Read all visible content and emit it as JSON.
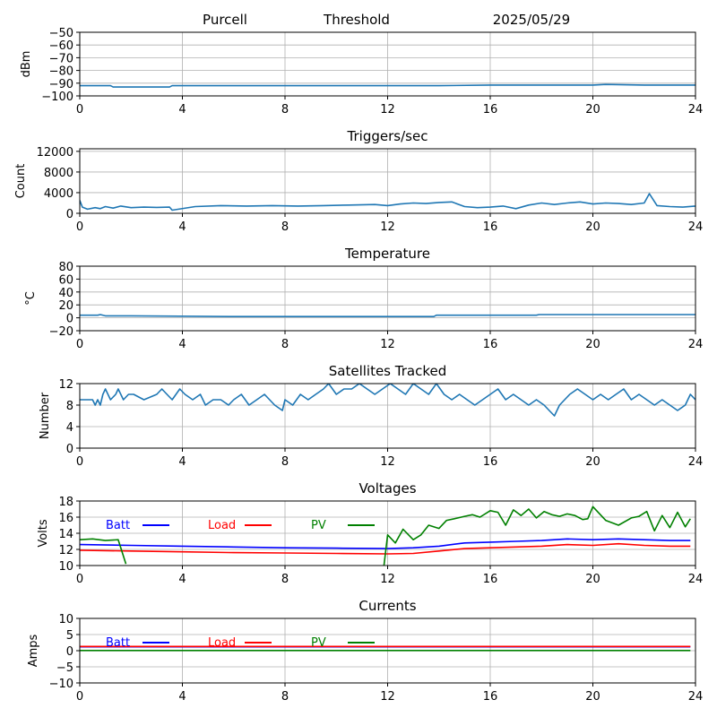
{
  "header": {
    "station": "Purcell",
    "label": "Threshold",
    "date": "2025/05/29"
  },
  "chart_data": [
    {
      "type": "line",
      "title": "",
      "xlabel": "",
      "ylabel": "dBm",
      "xlim": [
        0,
        24
      ],
      "ylim": [
        -100,
        -50
      ],
      "x_ticks": [
        0,
        4,
        8,
        12,
        16,
        20,
        24
      ],
      "y_ticks": [
        -100,
        -90,
        -80,
        -70,
        -60,
        -50
      ],
      "grid": true,
      "series": [
        {
          "color": "#1f77b4",
          "x": [
            0,
            1.2,
            1.3,
            3.5,
            3.6,
            12,
            14,
            16,
            18,
            20,
            20.5,
            22,
            24
          ],
          "y": [
            -92,
            -92,
            -93,
            -93,
            -92,
            -92,
            -92,
            -91.5,
            -91.5,
            -91.5,
            -91,
            -91.5,
            -91.5
          ]
        }
      ]
    },
    {
      "type": "line",
      "title": "Triggers/sec",
      "xlabel": "",
      "ylabel": "Count",
      "xlim": [
        0,
        24
      ],
      "ylim": [
        0,
        12500
      ],
      "x_ticks": [
        0,
        4,
        8,
        12,
        16,
        20,
        24
      ],
      "y_ticks": [
        0,
        4000,
        8000,
        12000
      ],
      "grid": true,
      "series": [
        {
          "color": "#1f77b4",
          "x": [
            0,
            0.1,
            0.3,
            0.6,
            0.8,
            1.0,
            1.3,
            1.6,
            2.0,
            2.5,
            3.0,
            3.5,
            3.6,
            4.5,
            5.5,
            6.5,
            7.5,
            8.5,
            9.5,
            10.5,
            11.5,
            12.0,
            12.5,
            13.0,
            13.5,
            14.0,
            14.5,
            15.0,
            15.5,
            16.0,
            16.5,
            17.0,
            17.5,
            18.0,
            18.5,
            19.0,
            19.5,
            20.0,
            20.5,
            21.0,
            21.5,
            22.0,
            22.2,
            22.5,
            23.0,
            23.5,
            24.0
          ],
          "y": [
            2500,
            1200,
            800,
            1100,
            900,
            1300,
            1000,
            1400,
            1100,
            1200,
            1150,
            1200,
            600,
            1300,
            1500,
            1400,
            1500,
            1400,
            1500,
            1600,
            1700,
            1500,
            1800,
            2000,
            1900,
            2100,
            2200,
            1300,
            1100,
            1200,
            1400,
            900,
            1600,
            2000,
            1700,
            2000,
            2200,
            1800,
            2000,
            1900,
            1700,
            2000,
            3800,
            1500,
            1300,
            1200,
            1400
          ]
        }
      ]
    },
    {
      "type": "line",
      "title": "Temperature",
      "xlabel": "",
      "ylabel": "°C",
      "xlim": [
        0,
        24
      ],
      "ylim": [
        -20,
        80
      ],
      "x_ticks": [
        0,
        4,
        8,
        12,
        16,
        20,
        24
      ],
      "y_ticks": [
        -20,
        0,
        20,
        40,
        60,
        80
      ],
      "grid": true,
      "series": [
        {
          "color": "#1f77b4",
          "x": [
            0,
            0.7,
            0.8,
            1.0,
            2.0,
            6.0,
            10.0,
            13.8,
            13.9,
            17.8,
            17.9,
            24
          ],
          "y": [
            4,
            4,
            5,
            3,
            3,
            2,
            2,
            2,
            4,
            4,
            5,
            5
          ]
        }
      ]
    },
    {
      "type": "line",
      "title": "Satellites Tracked",
      "xlabel": "",
      "ylabel": "Number",
      "xlim": [
        0,
        24
      ],
      "ylim": [
        0,
        12
      ],
      "x_ticks": [
        0,
        4,
        8,
        12,
        16,
        20,
        24
      ],
      "y_ticks": [
        0,
        4,
        8,
        12
      ],
      "grid": true,
      "series": [
        {
          "color": "#1f77b4",
          "x": [
            0,
            0.5,
            0.6,
            0.7,
            0.8,
            0.9,
            1.0,
            1.2,
            1.4,
            1.5,
            1.7,
            1.9,
            2.1,
            2.5,
            3.0,
            3.2,
            3.4,
            3.6,
            3.9,
            4.1,
            4.4,
            4.7,
            4.9,
            5.2,
            5.5,
            5.8,
            6.0,
            6.3,
            6.6,
            6.9,
            7.2,
            7.6,
            7.9,
            8.0,
            8.3,
            8.6,
            8.9,
            9.2,
            9.5,
            9.7,
            10.0,
            10.3,
            10.6,
            10.9,
            11.2,
            11.5,
            11.8,
            12.1,
            12.4,
            12.7,
            13.0,
            13.3,
            13.6,
            13.9,
            14.2,
            14.5,
            14.8,
            15.1,
            15.4,
            15.7,
            16.0,
            16.3,
            16.6,
            16.9,
            17.2,
            17.5,
            17.8,
            18.1,
            18.3,
            18.5,
            18.7,
            18.9,
            19.1,
            19.4,
            19.7,
            20.0,
            20.3,
            20.6,
            20.9,
            21.2,
            21.5,
            21.8,
            22.1,
            22.4,
            22.7,
            23.0,
            23.3,
            23.6,
            23.8,
            24.0
          ],
          "y": [
            9,
            9,
            8,
            9,
            8,
            10,
            11,
            9,
            10,
            11,
            9,
            10,
            10,
            9,
            10,
            11,
            10,
            9,
            11,
            10,
            9,
            10,
            8,
            9,
            9,
            8,
            9,
            10,
            8,
            9,
            10,
            8,
            7,
            9,
            8,
            10,
            9,
            10,
            11,
            12,
            10,
            11,
            11,
            12,
            11,
            10,
            11,
            12,
            11,
            10,
            12,
            11,
            10,
            12,
            10,
            9,
            10,
            9,
            8,
            9,
            10,
            11,
            9,
            10,
            9,
            8,
            9,
            8,
            7,
            6,
            8,
            9,
            10,
            11,
            10,
            9,
            10,
            9,
            10,
            11,
            9,
            10,
            9,
            8,
            9,
            8,
            7,
            8,
            10,
            9
          ]
        }
      ]
    },
    {
      "type": "line",
      "title": "Voltages",
      "xlabel": "",
      "ylabel": "Volts",
      "xlim": [
        0,
        24
      ],
      "ylim": [
        10,
        18
      ],
      "x_ticks": [
        0,
        4,
        8,
        12,
        16,
        20,
        24
      ],
      "y_ticks": [
        10,
        12,
        14,
        16,
        18
      ],
      "grid": true,
      "legend": "top",
      "series": [
        {
          "name": "Batt",
          "color": "#0000ff",
          "x": [
            0,
            2,
            4,
            6,
            8,
            10,
            12,
            13,
            14,
            15,
            16,
            17,
            18,
            19,
            20,
            21,
            22,
            23,
            23.8
          ],
          "y": [
            12.6,
            12.5,
            12.4,
            12.3,
            12.2,
            12.15,
            12.1,
            12.2,
            12.4,
            12.8,
            12.9,
            13.0,
            13.1,
            13.3,
            13.2,
            13.3,
            13.2,
            13.1,
            13.1
          ]
        },
        {
          "name": "Load",
          "color": "#ff0000",
          "x": [
            0,
            2,
            4,
            6,
            8,
            10,
            12,
            13,
            14,
            15,
            16,
            17,
            18,
            19,
            20,
            21,
            22,
            23,
            23.8
          ],
          "y": [
            11.9,
            11.8,
            11.7,
            11.6,
            11.55,
            11.5,
            11.45,
            11.5,
            11.8,
            12.1,
            12.2,
            12.3,
            12.4,
            12.6,
            12.5,
            12.7,
            12.5,
            12.4,
            12.4
          ]
        },
        {
          "name": "PV",
          "color": "#008000",
          "x": [
            0,
            0.5,
            1.0,
            1.5,
            1.8,
            1.85,
            11.8,
            11.85,
            12.0,
            12.3,
            12.6,
            13.0,
            13.3,
            13.6,
            14.0,
            14.3,
            14.6,
            15.0,
            15.3,
            15.6,
            16.0,
            16.3,
            16.6,
            16.9,
            17.2,
            17.5,
            17.8,
            18.1,
            18.4,
            18.7,
            19.0,
            19.3,
            19.6,
            19.8,
            20.0,
            20.5,
            21.0,
            21.5,
            21.8,
            22.1,
            22.4,
            22.7,
            23.0,
            23.3,
            23.6,
            23.8
          ],
          "y": [
            13.2,
            13.3,
            13.1,
            13.2,
            10.2,
            null,
            null,
            9.8,
            13.8,
            12.8,
            14.5,
            13.2,
            13.8,
            15.0,
            14.6,
            15.6,
            15.8,
            16.1,
            16.3,
            16.0,
            16.8,
            16.6,
            15.0,
            16.9,
            16.2,
            17.0,
            15.9,
            16.7,
            16.3,
            16.1,
            16.4,
            16.2,
            15.7,
            15.8,
            17.3,
            15.6,
            15.0,
            15.9,
            16.1,
            16.7,
            14.3,
            16.2,
            14.7,
            16.6,
            14.8,
            15.8
          ]
        }
      ]
    },
    {
      "type": "line",
      "title": "Currents",
      "xlabel": "",
      "ylabel": "Amps",
      "xlim": [
        0,
        24
      ],
      "ylim": [
        -10,
        10
      ],
      "x_ticks": [
        0,
        4,
        8,
        12,
        16,
        20,
        24
      ],
      "y_ticks": [
        -10,
        -5,
        0,
        5,
        10
      ],
      "grid": true,
      "legend": "top",
      "series": [
        {
          "name": "Batt",
          "color": "#0000ff",
          "x": [
            0,
            23.8
          ],
          "y": [
            1.2,
            1.2
          ]
        },
        {
          "name": "Load",
          "color": "#ff0000",
          "x": [
            0,
            23.8
          ],
          "y": [
            1.3,
            1.3
          ]
        },
        {
          "name": "PV",
          "color": "#008000",
          "x": [
            0,
            23.8
          ],
          "y": [
            0.05,
            0.05
          ]
        }
      ]
    }
  ]
}
